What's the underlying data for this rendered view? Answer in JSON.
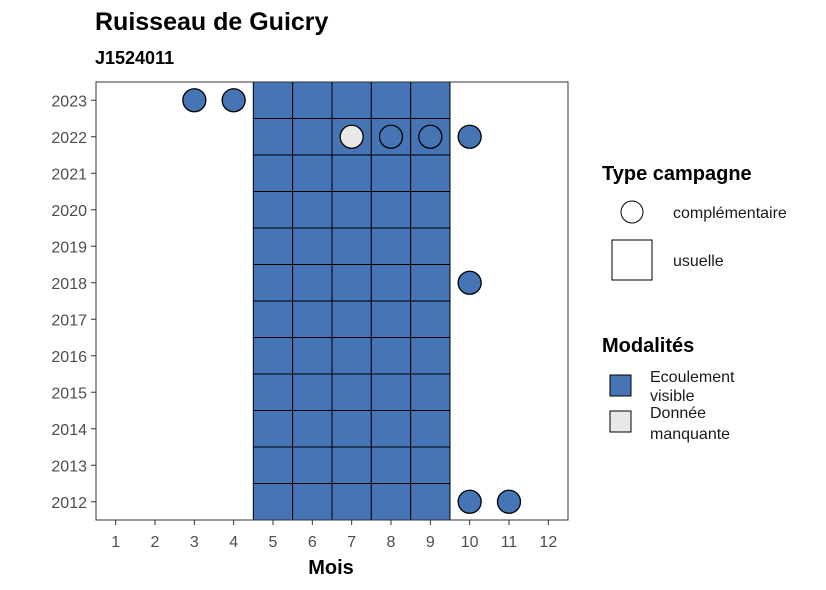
{
  "chart_data": {
    "type": "heatmap",
    "title": "Ruisseau de Guicry",
    "subtitle": "J1524011",
    "xlabel": "Mois",
    "ylabel": "",
    "x_ticks": [
      "1",
      "2",
      "3",
      "4",
      "5",
      "6",
      "7",
      "8",
      "9",
      "10",
      "11",
      "12"
    ],
    "y_ticks": [
      "2012",
      "2013",
      "2014",
      "2015",
      "2016",
      "2017",
      "2018",
      "2019",
      "2020",
      "2021",
      "2022",
      "2023"
    ],
    "xlim": [
      0.5,
      12.5
    ],
    "ylim": [
      2011.5,
      2023.5
    ],
    "colors": {
      "Ecoulement visible": "#4575b4",
      "Donnée manquante": "#e8e8e8"
    },
    "legend_type": {
      "title": "Type campagne",
      "items": [
        {
          "label": "complémentaire",
          "shape": "circle"
        },
        {
          "label": "usuelle",
          "shape": "square"
        }
      ]
    },
    "legend_modalites": {
      "title": "Modalités",
      "items": [
        {
          "label_line1": "Ecoulement",
          "label_line2": "visible",
          "modalite": "Ecoulement visible"
        },
        {
          "label_line1": "Donnée",
          "label_line2": "manquante",
          "modalite": "Donnée manquante"
        }
      ]
    },
    "usuelle": {
      "months": [
        5,
        6,
        7,
        8,
        9
      ],
      "year_start": 2012,
      "year_end": 2023,
      "modalite": "Ecoulement visible"
    },
    "complementaire": [
      {
        "year": 2023,
        "month": 3,
        "modalite": "Ecoulement visible"
      },
      {
        "year": 2023,
        "month": 4,
        "modalite": "Ecoulement visible"
      },
      {
        "year": 2022,
        "month": 7,
        "modalite": "Donnée manquante"
      },
      {
        "year": 2022,
        "month": 8,
        "modalite": "Ecoulement visible"
      },
      {
        "year": 2022,
        "month": 9,
        "modalite": "Ecoulement visible"
      },
      {
        "year": 2022,
        "month": 10,
        "modalite": "Ecoulement visible"
      },
      {
        "year": 2018,
        "month": 10,
        "modalite": "Ecoulement visible"
      },
      {
        "year": 2012,
        "month": 10,
        "modalite": "Ecoulement visible"
      },
      {
        "year": 2012,
        "month": 11,
        "modalite": "Ecoulement visible"
      }
    ]
  }
}
